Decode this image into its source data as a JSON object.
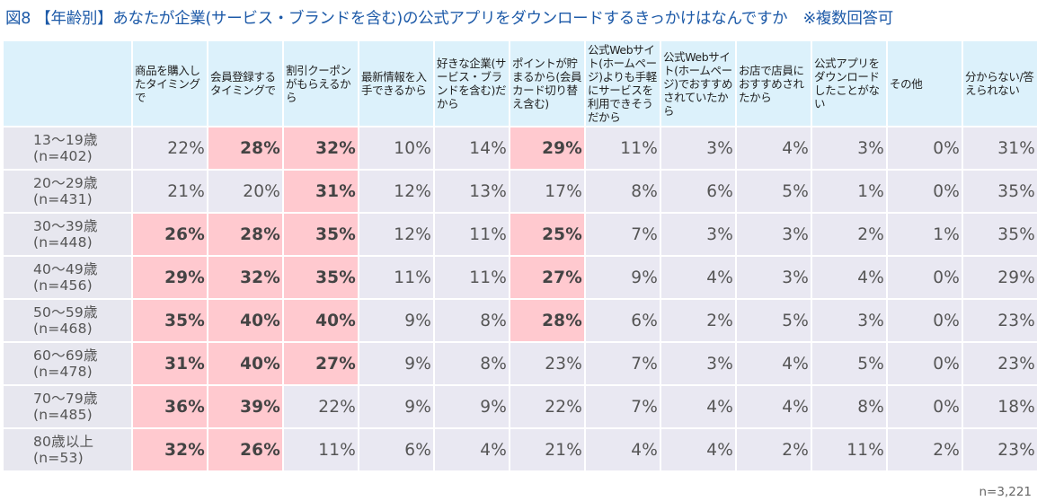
{
  "title": "図8 【年齢別】あなたが企業(サービス・ブランドを含む)の公式アプリをダウンロードするきっかけはなんですか　※複数回答可",
  "colors": {
    "title": "#1d5aa8",
    "header_bg": "#dcf1fb",
    "cell_bg": "#e9e8f2",
    "highlight_bg": "#ffc9cf"
  },
  "columns": [
    "商品を購入したタイミングで",
    "会員登録するタイミングで",
    "割引クーポンがもらえるから",
    "最新情報を入手できるから",
    "好きな企業(サービス・ブランドを含む)だから",
    "ポイントが貯まるから(会員カード切り替え含む)",
    "公式Webサイト(ホームページ)よりも手軽にサービスを利用できそうだから",
    "公式Webサイト(ホームページ)でおすすめされていたから",
    "お店で店員におすすめされたから",
    "公式アプリをダウンロードしたことがない",
    "その他",
    "分からない/答えられない"
  ],
  "rows": [
    {
      "age": "13〜19歳",
      "n": "(n=402)",
      "values": [
        "22%",
        "28%",
        "32%",
        "10%",
        "14%",
        "29%",
        "11%",
        "3%",
        "4%",
        "3%",
        "0%",
        "31%"
      ],
      "highlight": [
        false,
        true,
        true,
        false,
        false,
        true,
        false,
        false,
        false,
        false,
        false,
        false
      ]
    },
    {
      "age": "20〜29歳",
      "n": "(n=431)",
      "values": [
        "21%",
        "20%",
        "31%",
        "12%",
        "13%",
        "17%",
        "8%",
        "6%",
        "5%",
        "1%",
        "0%",
        "35%"
      ],
      "highlight": [
        false,
        false,
        true,
        false,
        false,
        false,
        false,
        false,
        false,
        false,
        false,
        false
      ]
    },
    {
      "age": "30〜39歳",
      "n": "(n=448)",
      "values": [
        "26%",
        "28%",
        "35%",
        "12%",
        "11%",
        "25%",
        "7%",
        "3%",
        "3%",
        "2%",
        "1%",
        "35%"
      ],
      "highlight": [
        true,
        true,
        true,
        false,
        false,
        true,
        false,
        false,
        false,
        false,
        false,
        false
      ]
    },
    {
      "age": "40〜49歳",
      "n": "(n=456)",
      "values": [
        "29%",
        "32%",
        "35%",
        "11%",
        "11%",
        "27%",
        "9%",
        "4%",
        "3%",
        "4%",
        "0%",
        "29%"
      ],
      "highlight": [
        true,
        true,
        true,
        false,
        false,
        true,
        false,
        false,
        false,
        false,
        false,
        false
      ]
    },
    {
      "age": "50〜59歳",
      "n": "(n=468)",
      "values": [
        "35%",
        "40%",
        "40%",
        "9%",
        "8%",
        "28%",
        "6%",
        "2%",
        "5%",
        "3%",
        "0%",
        "23%"
      ],
      "highlight": [
        true,
        true,
        true,
        false,
        false,
        true,
        false,
        false,
        false,
        false,
        false,
        false
      ]
    },
    {
      "age": "60〜69歳",
      "n": "(n=478)",
      "values": [
        "31%",
        "40%",
        "27%",
        "9%",
        "8%",
        "23%",
        "7%",
        "3%",
        "4%",
        "5%",
        "0%",
        "23%"
      ],
      "highlight": [
        true,
        true,
        true,
        false,
        false,
        false,
        false,
        false,
        false,
        false,
        false,
        false
      ]
    },
    {
      "age": "70〜79歳",
      "n": "(n=485)",
      "values": [
        "36%",
        "39%",
        "22%",
        "9%",
        "9%",
        "22%",
        "7%",
        "4%",
        "4%",
        "8%",
        "0%",
        "18%"
      ],
      "highlight": [
        true,
        true,
        false,
        false,
        false,
        false,
        false,
        false,
        false,
        false,
        false,
        false
      ]
    },
    {
      "age": "80歳以上",
      "n": "(n=53)",
      "values": [
        "32%",
        "26%",
        "11%",
        "6%",
        "4%",
        "21%",
        "4%",
        "4%",
        "2%",
        "11%",
        "2%",
        "23%"
      ],
      "highlight": [
        true,
        true,
        false,
        false,
        false,
        false,
        false,
        false,
        false,
        false,
        false,
        false
      ]
    }
  ],
  "footer": "n=3,221",
  "chart_data": {
    "type": "table",
    "title": "図8 【年齢別】あなたが企業(サービス・ブランドを含む)の公式アプリをダウンロードするきっかけはなんですか　※複数回答可",
    "categories": [
      "13〜19歳(n=402)",
      "20〜29歳(n=431)",
      "30〜39歳(n=448)",
      "40〜49歳(n=456)",
      "50〜59歳(n=468)",
      "60〜69歳(n=478)",
      "70〜79歳(n=485)",
      "80歳以上(n=53)"
    ],
    "series": [
      {
        "name": "商品を購入したタイミングで",
        "values": [
          22,
          21,
          26,
          29,
          35,
          31,
          36,
          32
        ]
      },
      {
        "name": "会員登録するタイミングで",
        "values": [
          28,
          20,
          28,
          32,
          40,
          40,
          39,
          26
        ]
      },
      {
        "name": "割引クーポンがもらえるから",
        "values": [
          32,
          31,
          35,
          35,
          40,
          27,
          22,
          11
        ]
      },
      {
        "name": "最新情報を入手できるから",
        "values": [
          10,
          12,
          12,
          11,
          9,
          9,
          9,
          6
        ]
      },
      {
        "name": "好きな企業(サービス・ブランドを含む)だから",
        "values": [
          14,
          13,
          11,
          11,
          8,
          8,
          9,
          4
        ]
      },
      {
        "name": "ポイントが貯まるから(会員カード切り替え含む)",
        "values": [
          29,
          17,
          25,
          27,
          28,
          23,
          22,
          21
        ]
      },
      {
        "name": "公式Webサイト(ホームページ)よりも手軽にサービスを利用できそうだから",
        "values": [
          11,
          8,
          7,
          9,
          6,
          7,
          7,
          4
        ]
      },
      {
        "name": "公式Webサイト(ホームページ)でおすすめされていたから",
        "values": [
          3,
          6,
          3,
          4,
          2,
          3,
          4,
          4
        ]
      },
      {
        "name": "お店で店員におすすめされたから",
        "values": [
          4,
          5,
          3,
          3,
          5,
          4,
          4,
          2
        ]
      },
      {
        "name": "公式アプリをダウンロードしたことがない",
        "values": [
          3,
          1,
          2,
          4,
          3,
          5,
          8,
          11
        ]
      },
      {
        "name": "その他",
        "values": [
          0,
          0,
          1,
          0,
          0,
          0,
          0,
          2
        ]
      },
      {
        "name": "分からない/答えられない",
        "values": [
          31,
          35,
          35,
          29,
          23,
          23,
          18,
          23
        ]
      }
    ],
    "unit": "%",
    "total_n": "n=3,221",
    "xlabel": "",
    "ylabel": ""
  }
}
